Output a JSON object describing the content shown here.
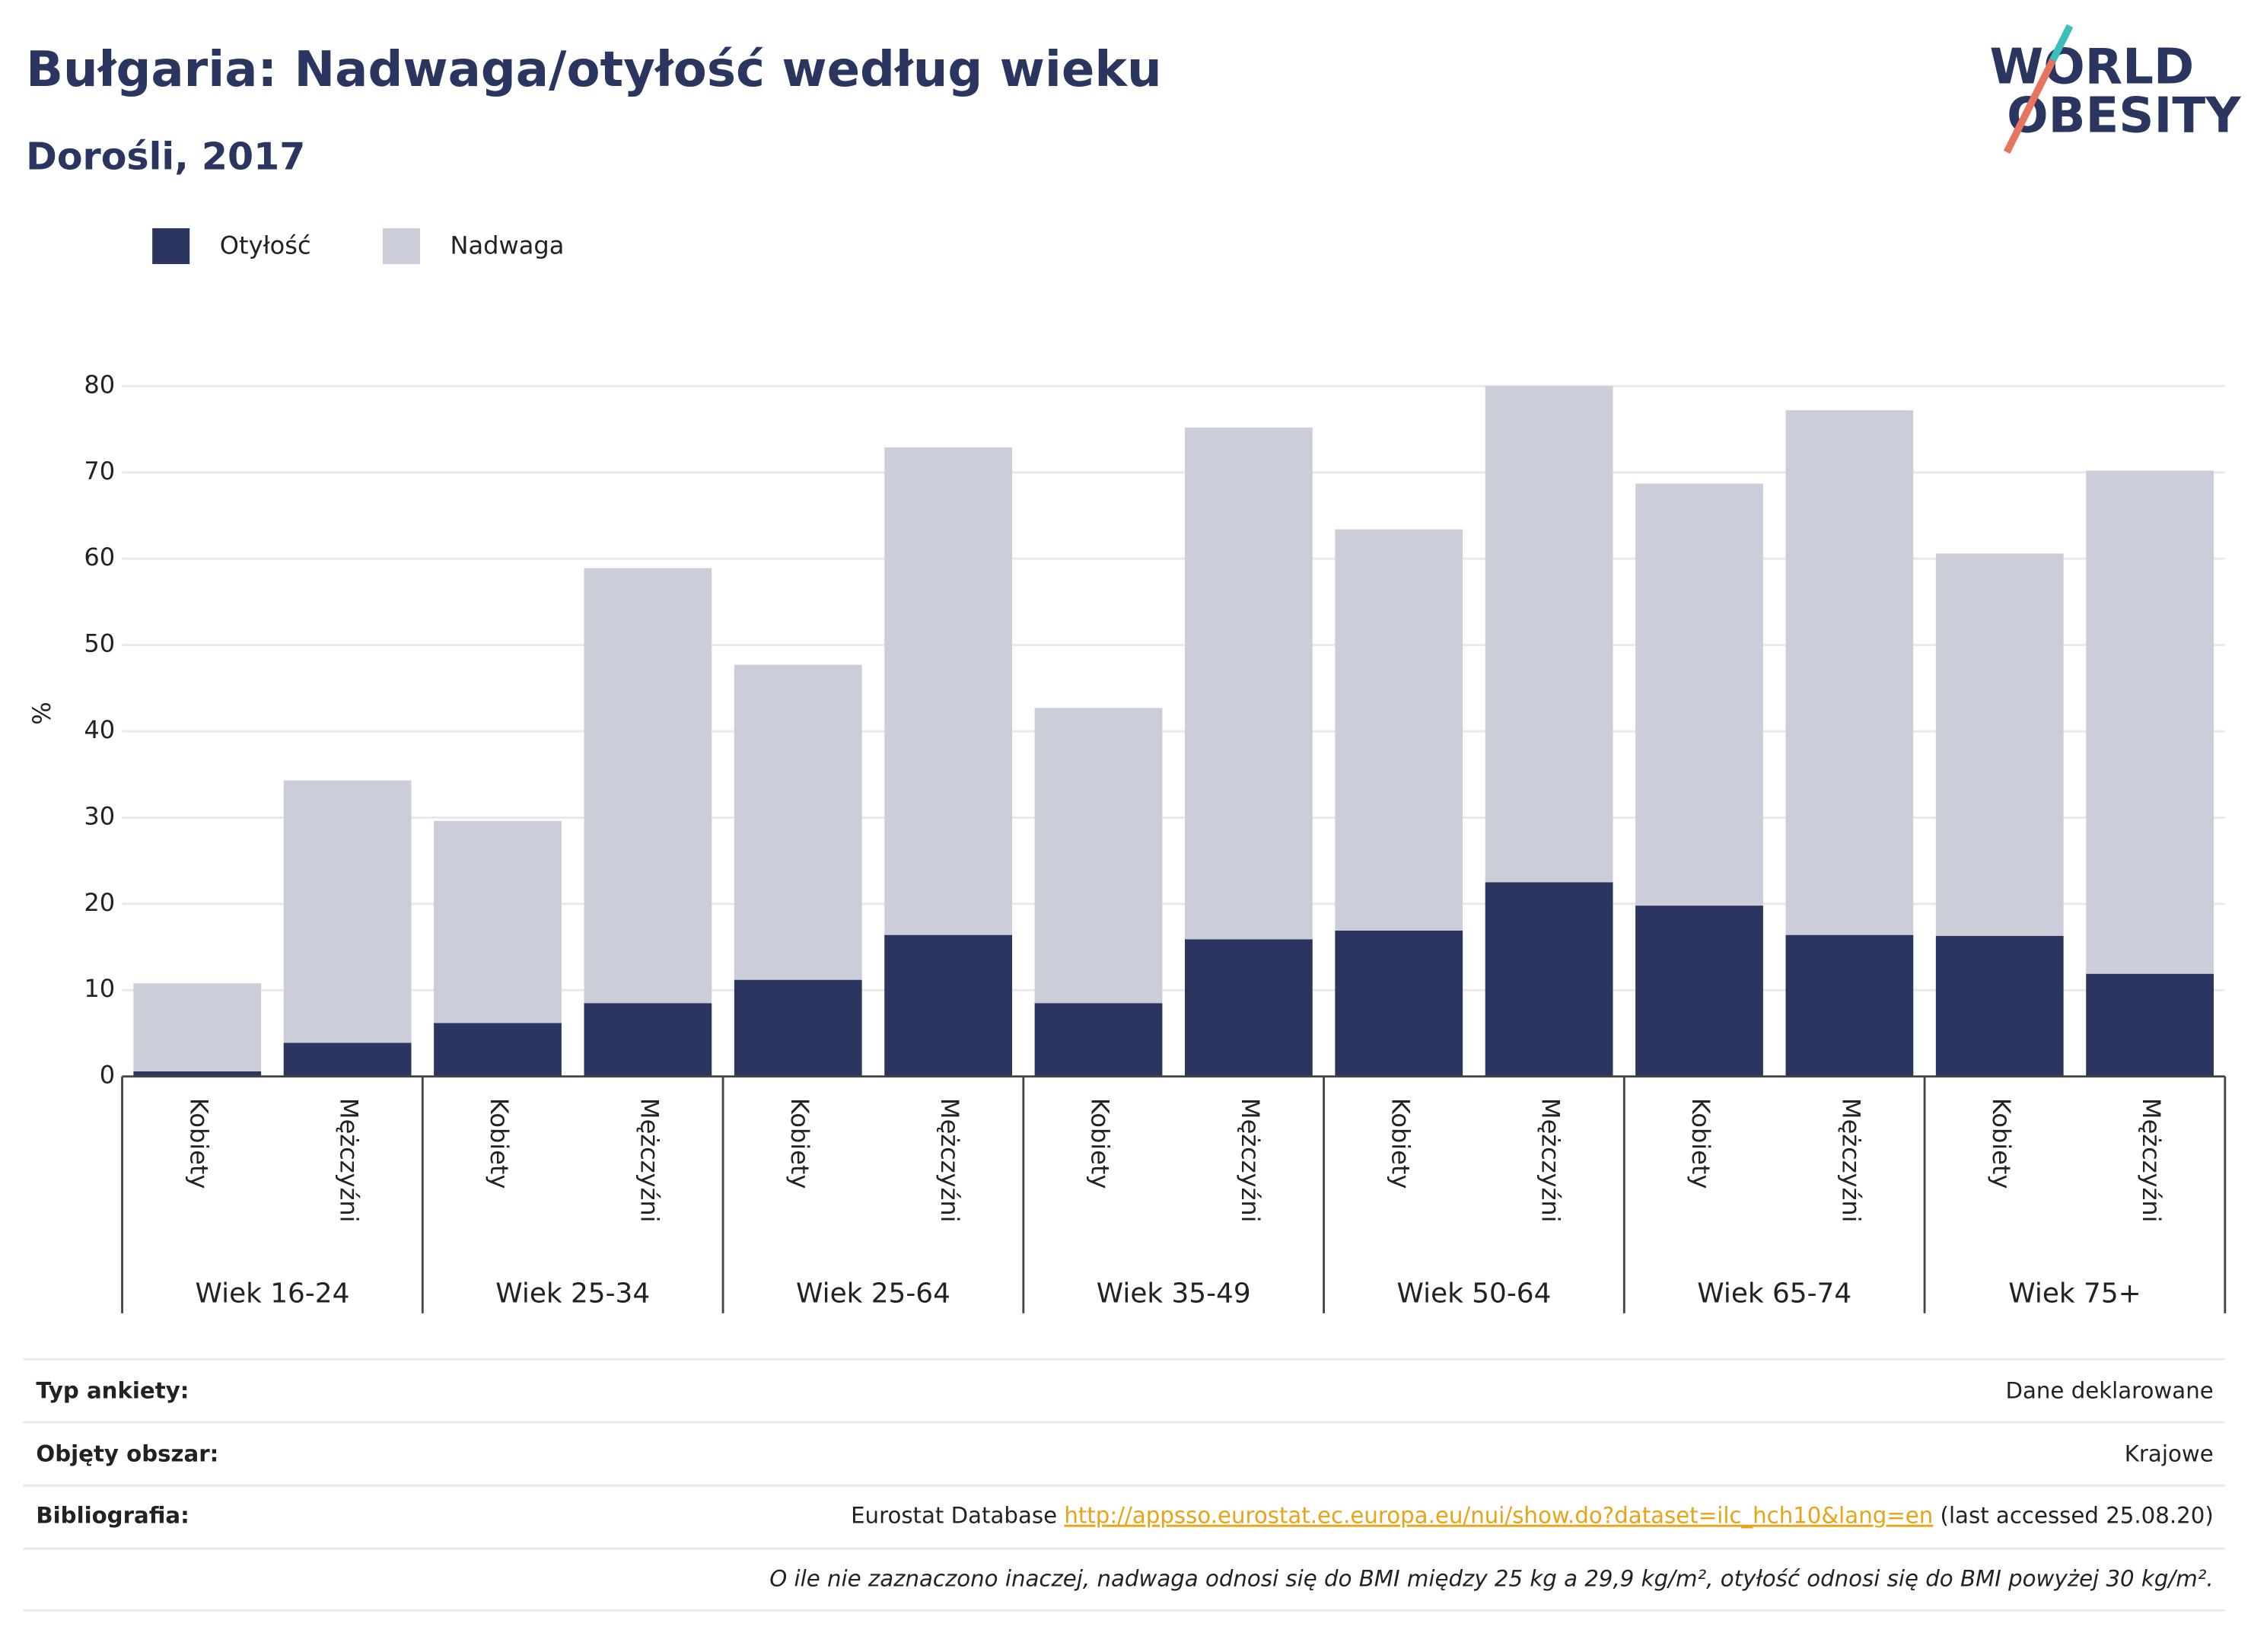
{
  "chart_data": {
    "type": "stacked_bar",
    "title": "Bułgaria: Nadwaga/otyłość według wieku",
    "subtitle": "Dorośli, 2017",
    "y_label": "%",
    "categories": [
      "Kobiety",
      "Mężczyźni",
      "Kobiety",
      "Mężczyźni",
      "Kobiety",
      "Mężczyźni",
      "Kobiety",
      "Mężczyźni",
      "Kobiety",
      "Mężczyźni",
      "Kobiety",
      "Mężczyźni",
      "Kobiety",
      "Mężczyźni"
    ],
    "groups": [
      "Wiek 16-24",
      "Wiek 25-34",
      "Wiek 25-64",
      "Wiek 35-49",
      "Wiek 50-64",
      "Wiek 65-74",
      "Wiek 75+"
    ],
    "series": [
      {
        "name": "Otyłość",
        "color": "#2a3560",
        "values": [
          0.6,
          3.9,
          6.2,
          8.5,
          11.2,
          16.4,
          8.5,
          15.9,
          16.9,
          22.5,
          19.8,
          16.4,
          16.3,
          11.9
        ]
      },
      {
        "name": "Nadwaga",
        "color": "#cbcdd9",
        "values": [
          10.2,
          30.4,
          23.4,
          50.4,
          36.5,
          56.5,
          34.2,
          59.3,
          46.5,
          57.5,
          48.9,
          60.8,
          44.3,
          58.3
        ]
      }
    ],
    "ylim": [
      0,
      80
    ],
    "yticks": [
      0,
      10,
      20,
      30,
      40,
      50,
      60,
      70,
      80
    ],
    "grid": true,
    "legend": "top-left"
  },
  "logo": [
    "WORLD",
    "OBESITY"
  ],
  "footer": {
    "rows": [
      {
        "label": "Typ ankiety:",
        "value": "Dane deklarowane"
      },
      {
        "label": "Objęty obszar:",
        "value": "Krajowe"
      }
    ],
    "bibliography": {
      "label": "Bibliografia:",
      "source": "Eurostat Database",
      "link": "http://appsso.eurostat.ec.europa.eu/nui/show.do?dataset=ilc_hch10&lang=en",
      "note": "(last accessed 25.08.20)"
    },
    "footnote": "O ile nie zaznaczono inaczej, nadwaga odnosi się do BMI między 25 kg a 29,9 kg/m², otyłość odnosi się do BMI powyżej 30 kg/m²."
  }
}
